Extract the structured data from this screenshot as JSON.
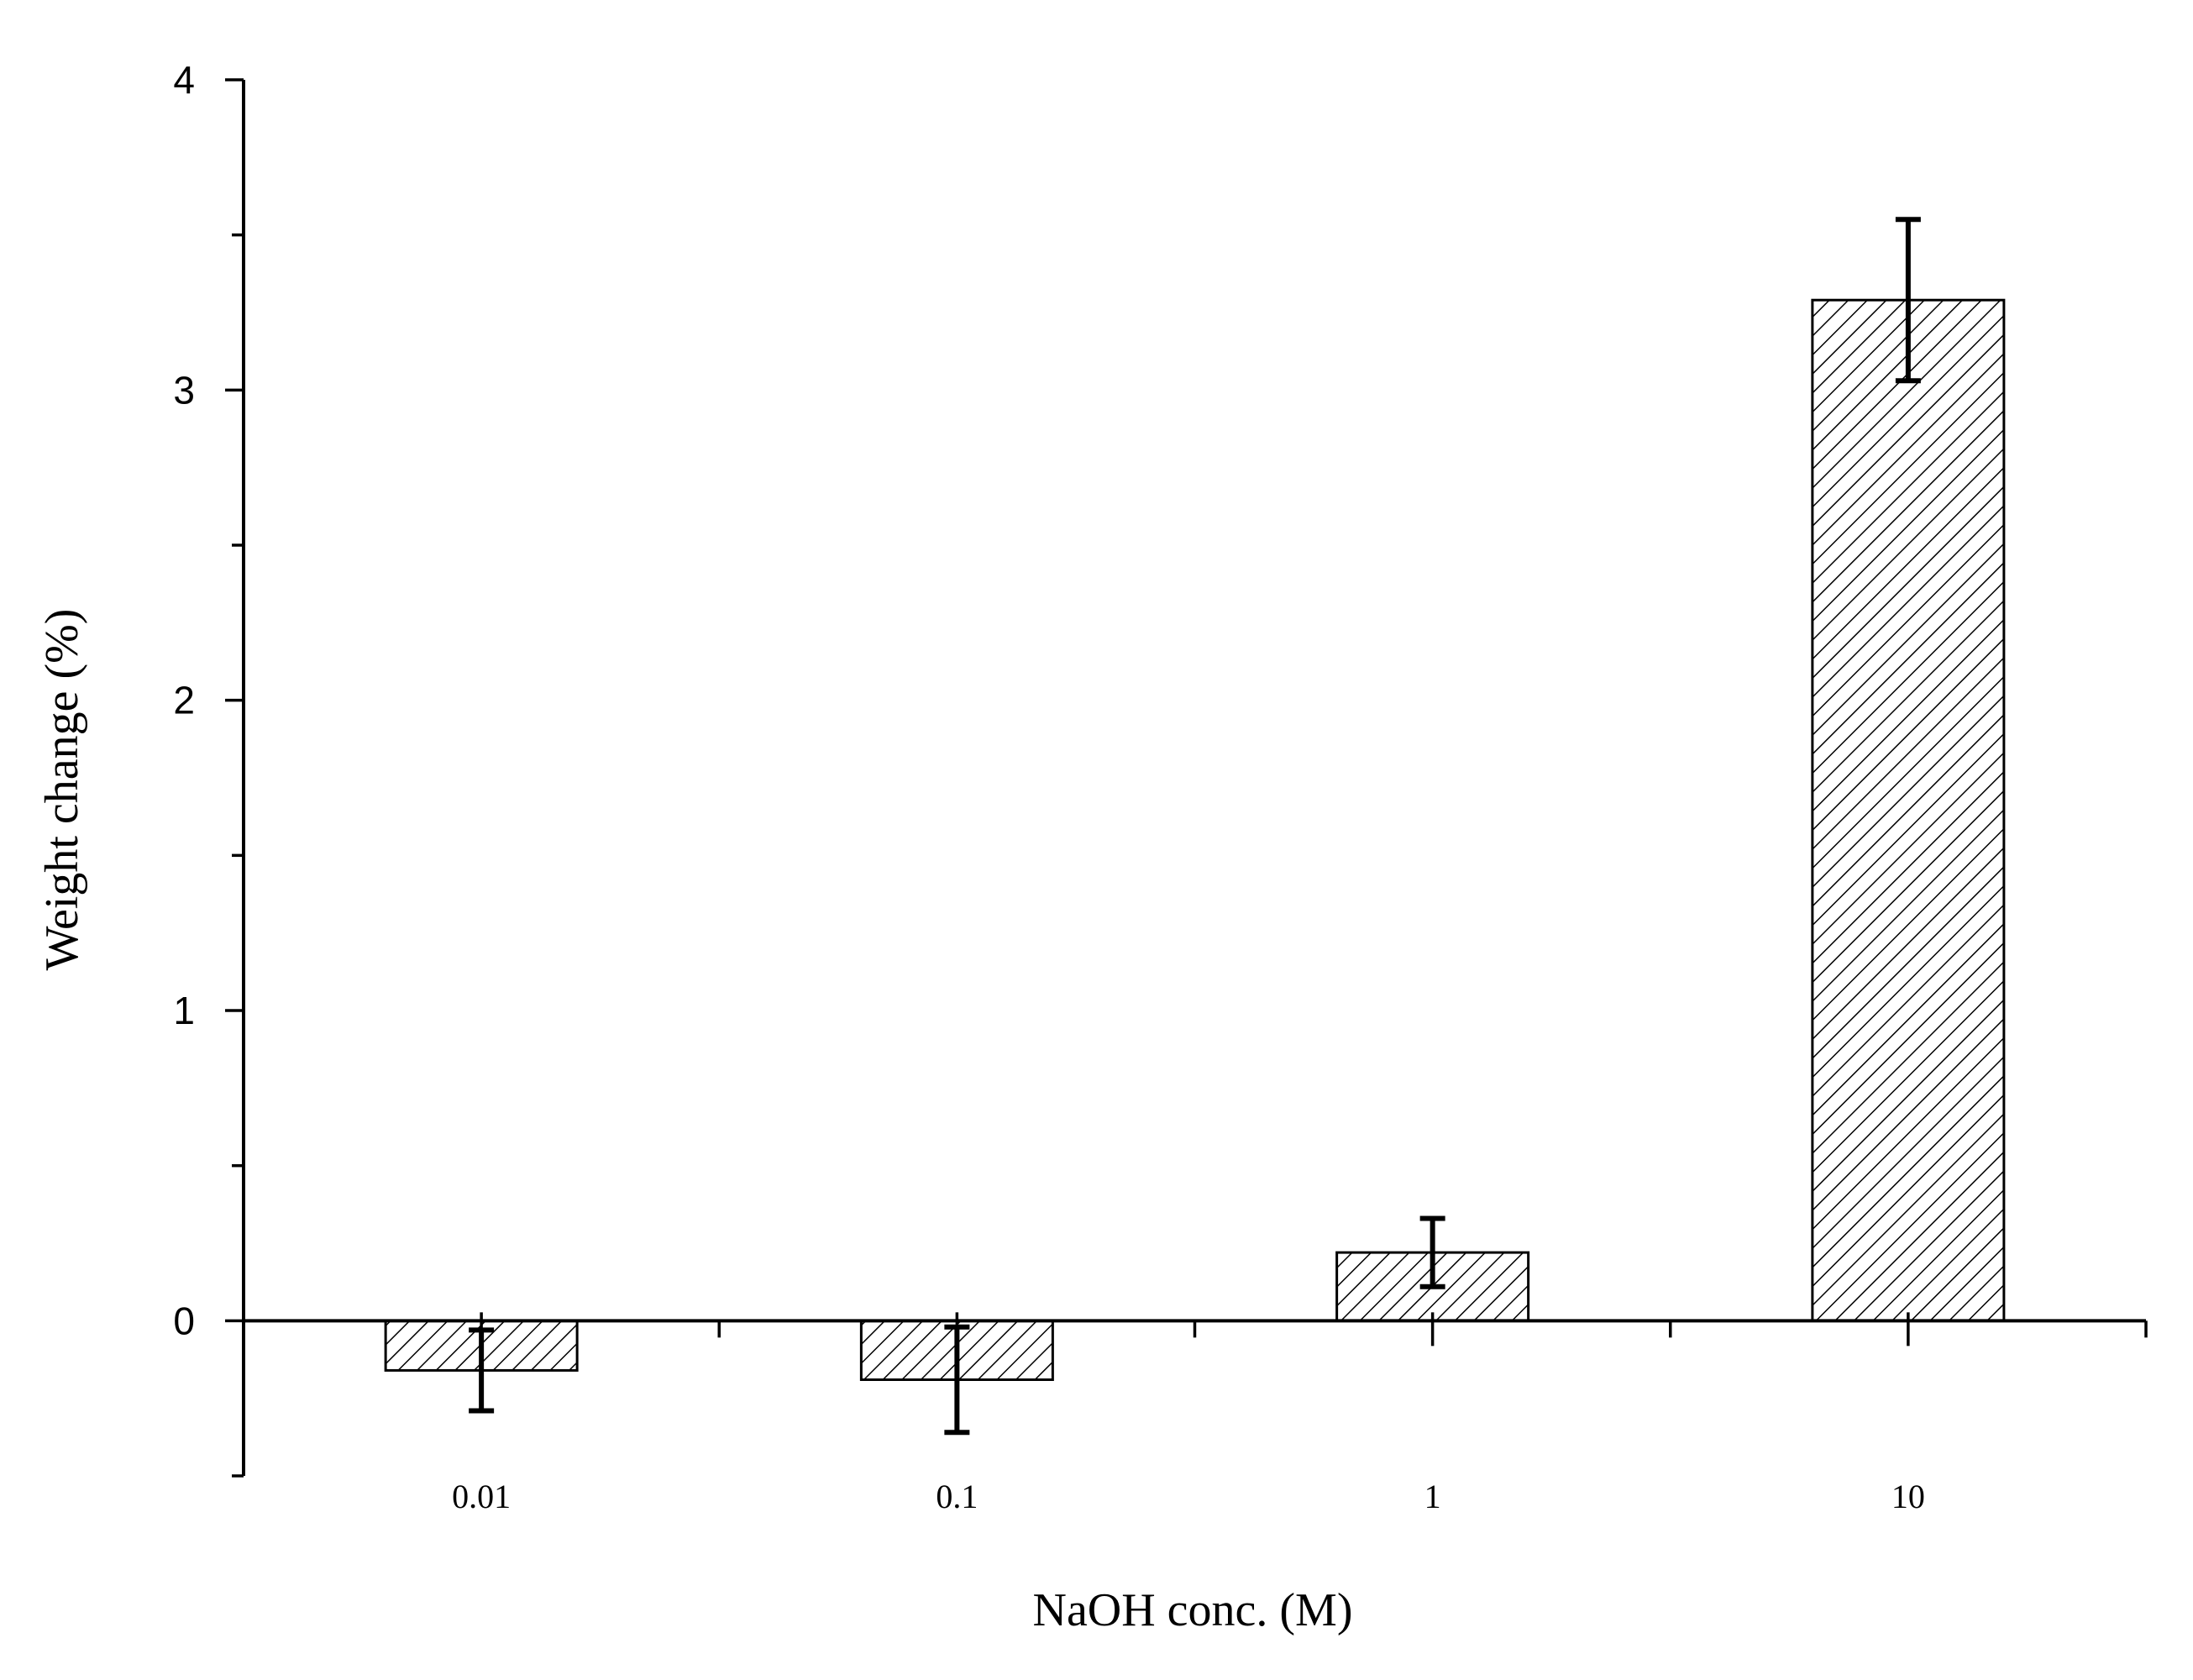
{
  "chart_data": {
    "type": "bar",
    "title": "",
    "xlabel": "NaOH conc. (M)",
    "ylabel": "Weight change (%)",
    "categories": [
      "0.01",
      "0.1",
      "1",
      "10"
    ],
    "values": [
      -0.16,
      -0.19,
      0.22,
      3.29
    ],
    "errors": [
      0.13,
      0.17,
      0.11,
      0.26
    ],
    "ylim": [
      -0.5,
      4
    ],
    "yticks": [
      0,
      1,
      2,
      3,
      4
    ],
    "yticks_minor": [
      -0.5,
      0.5,
      1.5,
      2.5,
      3.5
    ],
    "grid": false,
    "bar_fill": "hatched",
    "colors": {
      "bar_fill": "#ffffff",
      "bar_hatch": "#000000",
      "axis": "#000000"
    }
  }
}
